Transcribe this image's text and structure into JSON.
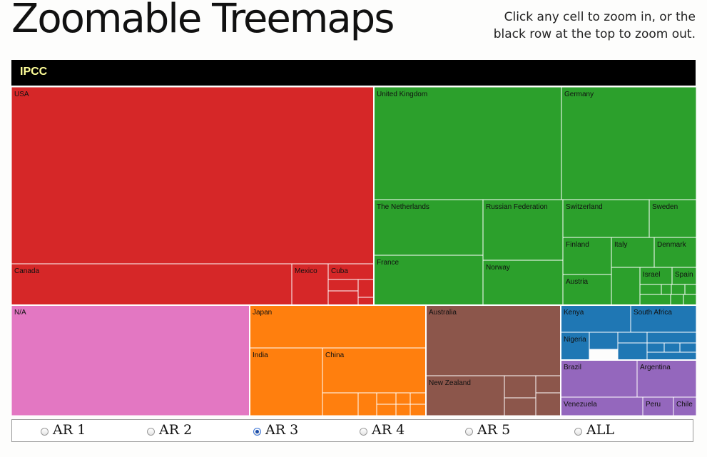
{
  "header": {
    "title": "Zoomable Treemaps",
    "instructions": "Click any cell to zoom in, or the black row at the top to zoom out."
  },
  "breadcrumb": {
    "label": "IPCC",
    "label_color": "#ffff99"
  },
  "controls": {
    "options": [
      "AR 1",
      "AR 2",
      "AR 3",
      "AR 4",
      "AR 5",
      "ALL"
    ],
    "selected": "AR 3"
  },
  "colors": {
    "north_america": "#d62728",
    "europe": "#2ca02c",
    "na": "#e377c2",
    "asia": "#ff7f0e",
    "oceania": "#8c564b",
    "africa": "#1f77b4",
    "south_america": "#9467bd"
  },
  "chart_data": {
    "type": "treemap",
    "root": "IPCC",
    "groups": [
      {
        "key": "north_america",
        "labeled_children": [
          {
            "name": "USA",
            "value": 112
          },
          {
            "name": "Canada",
            "value": 23
          },
          {
            "name": "Mexico",
            "value": 3
          },
          {
            "name": "Cuba",
            "value": 2
          }
        ],
        "unlabeled_children": [
          1,
          1,
          1,
          1,
          1,
          1
        ]
      },
      {
        "key": "europe",
        "labeled_children": [
          {
            "name": "United Kingdom",
            "value": 26
          },
          {
            "name": "Germany",
            "value": 18
          },
          {
            "name": "The Netherlands",
            "value": 8
          },
          {
            "name": "Russian Federation",
            "value": 6
          },
          {
            "name": "France",
            "value": 8
          },
          {
            "name": "Norway",
            "value": 6
          },
          {
            "name": "Switzerland",
            "value": 4
          },
          {
            "name": "Sweden",
            "value": 2
          },
          {
            "name": "Finland",
            "value": 2
          },
          {
            "name": "Italy",
            "value": 2
          },
          {
            "name": "Denmark",
            "value": 2
          },
          {
            "name": "Austria",
            "value": 2
          },
          {
            "name": "Israel",
            "value": 1
          },
          {
            "name": "Spain",
            "value": 1
          }
        ],
        "unlabeled_children": [
          1,
          1,
          1,
          1,
          1,
          1,
          1,
          1
        ]
      },
      {
        "key": "na",
        "labeled_children": [
          {
            "name": "N/A",
            "value": 40
          }
        ],
        "unlabeled_children": []
      },
      {
        "key": "asia",
        "labeled_children": [
          {
            "name": "Japan",
            "value": 12
          },
          {
            "name": "India",
            "value": 8
          },
          {
            "name": "China",
            "value": 7
          }
        ],
        "unlabeled_children": [
          1,
          1,
          1,
          1,
          1,
          1,
          1,
          1
        ]
      },
      {
        "key": "oceania",
        "labeled_children": [
          {
            "name": "Australia",
            "value": 12
          },
          {
            "name": "New Zealand",
            "value": 5
          }
        ],
        "unlabeled_children": [
          1,
          1,
          1,
          1
        ]
      },
      {
        "key": "africa",
        "labeled_children": [
          {
            "name": "Kenya",
            "value": 3
          },
          {
            "name": "South Africa",
            "value": 3
          },
          {
            "name": "Nigeria",
            "value": 2
          }
        ],
        "unlabeled_children": [
          1,
          1,
          1,
          1,
          1,
          1,
          1,
          1
        ]
      },
      {
        "key": "south_america",
        "labeled_children": [
          {
            "name": "Brazil",
            "value": 4
          },
          {
            "name": "Argentina",
            "value": 3
          },
          {
            "name": "Venezuela",
            "value": 2
          },
          {
            "name": "Peru",
            "value": 1
          },
          {
            "name": "Chile",
            "value": 1
          }
        ],
        "unlabeled_children": []
      }
    ]
  }
}
